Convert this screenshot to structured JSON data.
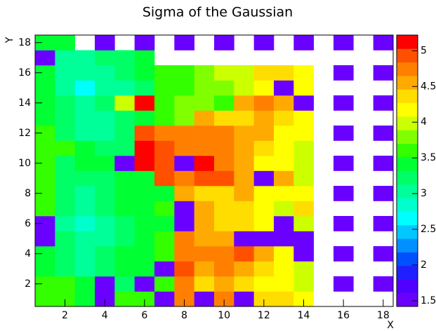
{
  "chart_data": {
    "type": "heatmap",
    "title": "Sigma of the Gaussian",
    "x_label": "X",
    "y_label": "Y",
    "x": [
      1,
      2,
      3,
      4,
      5,
      6,
      7,
      8,
      9,
      10,
      11,
      12,
      13,
      14,
      15,
      16,
      17,
      18
    ],
    "y": [
      1,
      2,
      3,
      4,
      5,
      6,
      7,
      8,
      9,
      10,
      11,
      12,
      13,
      14,
      15,
      16,
      17,
      18
    ],
    "xlim": [
      0.5,
      18.5
    ],
    "xticks": [
      2,
      4,
      6,
      8,
      10,
      12,
      14,
      16,
      18
    ],
    "ylim": [
      0.5,
      18.5
    ],
    "yticks": [
      2,
      4,
      6,
      8,
      10,
      12,
      14,
      16,
      18
    ],
    "zlim": [
      1.42,
      5.22
    ],
    "zticks": [
      1.5,
      2,
      2.5,
      3,
      3.5,
      4,
      4.5,
      5
    ],
    "colorscale": [
      "#6a00ff",
      "#5000ff",
      "#2020ff",
      "#0050ff",
      "#0090ff",
      "#00c8ff",
      "#00ffff",
      "#00ffcc",
      "#00ff99",
      "#00ff66",
      "#00ff33",
      "#33ff00",
      "#80ff00",
      "#ccff00",
      "#ffff00",
      "#ffdd00",
      "#ffaa00",
      "#ff8000",
      "#ff5000",
      "#ff0000"
    ],
    "values": [
      [
        3.6,
        3.6,
        3.5,
        1.45,
        3.6,
        3.6,
        1.45,
        4.7,
        1.45,
        4.7,
        1.45,
        4.3,
        4.3,
        4.1,
        null,
        null,
        null,
        null
      ],
      [
        3.6,
        3.6,
        3.4,
        1.45,
        3.3,
        1.45,
        3.6,
        4.7,
        4.4,
        4.6,
        4.3,
        4.2,
        4.2,
        4.0,
        null,
        1.45,
        null,
        1.45
      ],
      [
        3.5,
        3.2,
        3.1,
        3.2,
        3.5,
        3.5,
        1.45,
        4.9,
        4.5,
        4.7,
        4.5,
        4.3,
        4.2,
        3.9,
        null,
        null,
        null,
        null
      ],
      [
        3.4,
        3.2,
        3.1,
        3.2,
        3.4,
        3.5,
        3.6,
        4.7,
        4.7,
        4.8,
        4.9,
        4.5,
        4.2,
        1.45,
        null,
        1.45,
        null,
        1.45
      ],
      [
        1.45,
        3.2,
        3.1,
        3.1,
        3.3,
        3.5,
        3.6,
        4.7,
        4.5,
        4.6,
        1.45,
        1.45,
        1.45,
        1.45,
        null,
        null,
        null,
        null
      ],
      [
        1.45,
        3.1,
        2.8,
        3.1,
        3.3,
        3.5,
        3.5,
        1.45,
        4.6,
        4.4,
        4.3,
        4.1,
        1.45,
        3.9,
        null,
        1.45,
        null,
        1.45
      ],
      [
        3.6,
        3.2,
        3.1,
        3.2,
        3.4,
        3.5,
        3.6,
        1.45,
        4.5,
        4.3,
        4.3,
        4.1,
        3.9,
        4.3,
        null,
        null,
        null,
        null
      ],
      [
        3.6,
        3.2,
        3.1,
        3.2,
        3.4,
        3.5,
        3.5,
        4.5,
        4.3,
        4.3,
        4.5,
        4.2,
        4.2,
        4.1,
        null,
        1.45,
        null,
        1.45
      ],
      [
        3.6,
        3.2,
        3.2,
        3.3,
        3.4,
        3.5,
        4.9,
        4.8,
        5.0,
        4.9,
        4.6,
        1.45,
        4.5,
        4.0,
        null,
        null,
        null,
        null
      ],
      [
        3.6,
        3.3,
        3.5,
        3.5,
        1.45,
        5.1,
        4.9,
        1.45,
        5.1,
        4.7,
        4.5,
        4.2,
        4.1,
        4.0,
        null,
        1.45,
        null,
        1.45
      ],
      [
        3.6,
        3.6,
        3.5,
        3.2,
        3.3,
        5.1,
        4.9,
        4.7,
        4.7,
        4.7,
        4.6,
        4.4,
        4.1,
        4.0,
        null,
        null,
        null,
        null
      ],
      [
        3.6,
        3.2,
        3.1,
        3.1,
        3.2,
        5.0,
        4.8,
        4.8,
        4.7,
        4.7,
        4.6,
        4.5,
        4.2,
        4.1,
        null,
        1.45,
        null,
        1.45
      ],
      [
        3.5,
        3.2,
        3.1,
        3.1,
        3.3,
        3.5,
        3.6,
        3.7,
        4.5,
        4.4,
        4.4,
        4.5,
        4.3,
        4.1,
        null,
        null,
        null,
        null
      ],
      [
        3.5,
        3.2,
        3.1,
        3.2,
        3.9,
        5.1,
        3.6,
        3.7,
        3.8,
        3.6,
        4.5,
        4.7,
        4.5,
        1.45,
        null,
        1.45,
        null,
        1.45
      ],
      [
        3.4,
        3.0,
        2.7,
        3.0,
        3.1,
        3.3,
        3.6,
        3.6,
        3.7,
        3.8,
        3.9,
        4.2,
        1.45,
        4.2,
        null,
        null,
        null,
        null
      ],
      [
        3.4,
        3.1,
        3.0,
        3.1,
        3.2,
        3.4,
        3.6,
        3.6,
        3.8,
        3.9,
        4.0,
        4.3,
        4.3,
        4.1,
        null,
        1.45,
        null,
        1.45
      ],
      [
        1.45,
        3.1,
        3.1,
        3.2,
        3.2,
        3.4,
        null,
        null,
        null,
        null,
        null,
        null,
        null,
        null,
        null,
        null,
        null,
        null
      ],
      [
        3.5,
        3.5,
        null,
        1.45,
        null,
        1.45,
        null,
        1.45,
        null,
        1.45,
        null,
        1.45,
        null,
        1.45,
        null,
        1.45,
        null,
        1.45
      ]
    ]
  }
}
